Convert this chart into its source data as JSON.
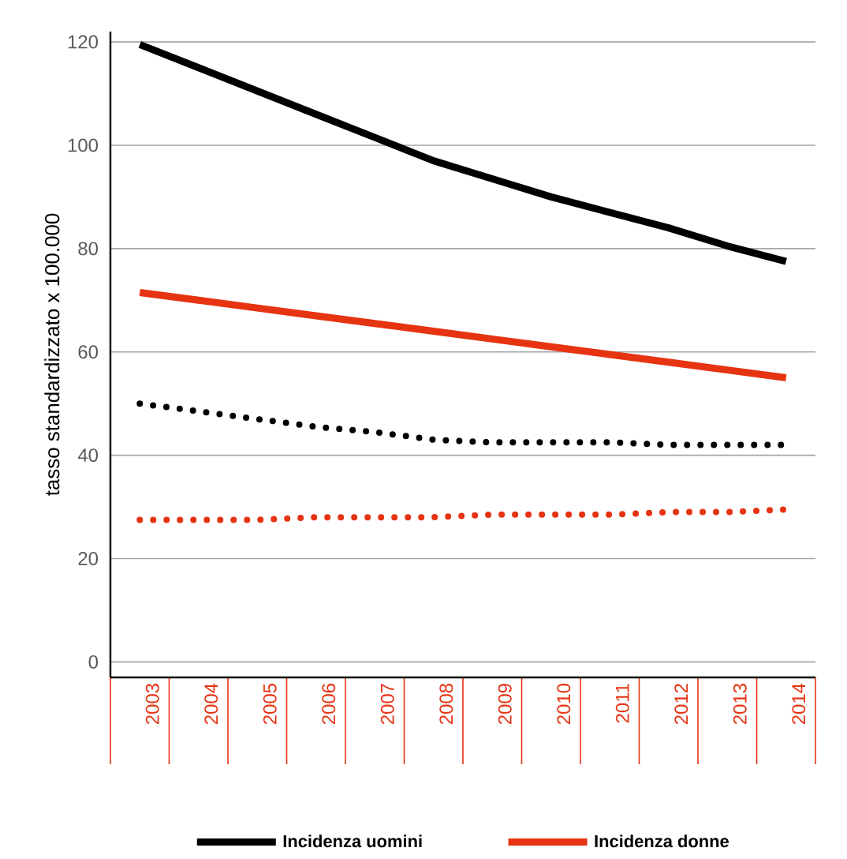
{
  "chart_data": {
    "type": "line",
    "ylabel": "tasso standardizzato x 100.000",
    "categories": [
      "2003",
      "2004",
      "2005",
      "2006",
      "2007",
      "2008",
      "2009",
      "2010",
      "2011",
      "2012",
      "2013",
      "2014"
    ],
    "series": [
      {
        "name": "Incidenza uomini",
        "color": "#000000",
        "line_style": "solid",
        "values": [
          119.5,
          115,
          110.5,
          106,
          101.5,
          97,
          93.5,
          90,
          87,
          84,
          80.5,
          77.5
        ]
      },
      {
        "name": "Incidenza donne",
        "color": "#e63312",
        "line_style": "solid",
        "values": [
          71.5,
          70,
          68.5,
          67,
          65.5,
          64,
          62.5,
          61,
          59.5,
          58,
          56.5,
          55
        ]
      },
      {
        "color": "#000000",
        "line_style": "dotted",
        "values": [
          50,
          48.5,
          47,
          45.5,
          44.5,
          43,
          42.5,
          42.5,
          42.5,
          42,
          42,
          42
        ]
      },
      {
        "color": "#e63312",
        "line_style": "dotted",
        "values": [
          27.5,
          27.5,
          27.5,
          28,
          28,
          28,
          28.5,
          28.5,
          28.5,
          29,
          29,
          29.5
        ]
      }
    ],
    "ylim": [
      -3,
      122
    ],
    "yticks": [
      0,
      20,
      40,
      60,
      80,
      100,
      120
    ],
    "grid": "y",
    "legend": "bottom"
  }
}
